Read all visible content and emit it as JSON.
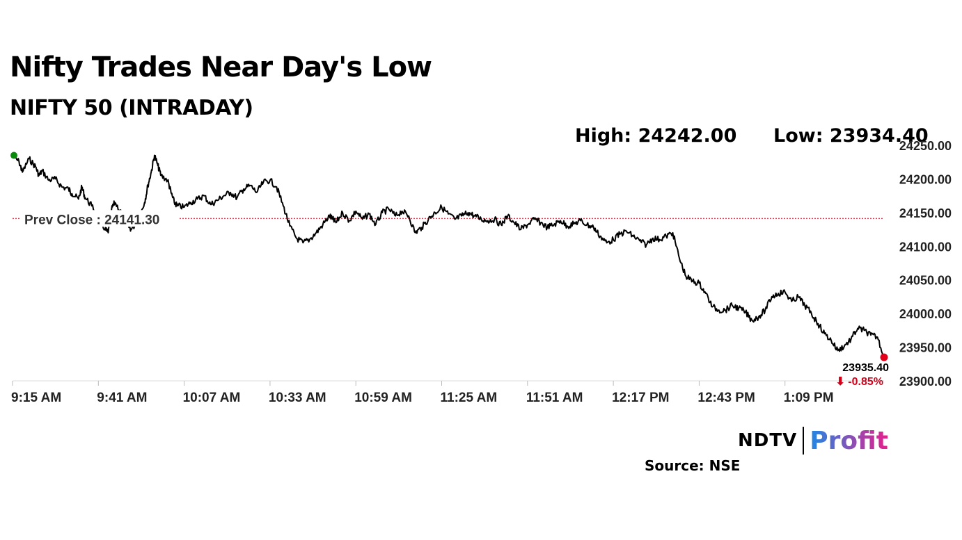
{
  "header": {
    "title": "Nifty Trades Near Day's Low",
    "subtitle": "NIFTY 50 (INTRADAY)",
    "high_text": "High: 24242.00",
    "low_text": "Low: 23934.40"
  },
  "footer": {
    "logo_left": "NDTV",
    "logo_right": "Profit",
    "source": "Source: NSE"
  },
  "colors": {
    "line": "#000000",
    "prev_close_line": "#d0021b",
    "start_dot": "#0a8a0a",
    "end_dot": "#e3001b",
    "profit_gradient_start": "#1e88e5",
    "profit_gradient_end": "#e91e8c"
  },
  "chart_data": {
    "type": "line",
    "ylim": [
      23900,
      24250
    ],
    "y_ticks": [
      "24250.00",
      "24200.00",
      "24150.00",
      "24100.00",
      "24050.00",
      "24000.00",
      "23950.00",
      "23900.00"
    ],
    "x_ticks": [
      "9:15 AM",
      "9:41 AM",
      "10:07 AM",
      "10:33 AM",
      "10:59 AM",
      "11:25 AM",
      "11:51 AM",
      "12:17 PM",
      "12:43 PM",
      "1:09 PM"
    ],
    "x_range_minutes": [
      0,
      264
    ],
    "prev_close": 24141.3,
    "prev_close_label": "Prev Close : 24141.30",
    "last_value_label": "23935.40",
    "change_label": "⬇ -0.85%",
    "series": [
      {
        "x": [
          0,
          2,
          3,
          5,
          7,
          8,
          9,
          11,
          13,
          15,
          17,
          18,
          20,
          21,
          22,
          24,
          26,
          28,
          29,
          30,
          31,
          33,
          35,
          36,
          38,
          40,
          41,
          42,
          43,
          44,
          45,
          47,
          48,
          49,
          50,
          52,
          54,
          56,
          58,
          60,
          62,
          64,
          66,
          68,
          70,
          72,
          74,
          76,
          78,
          80,
          82,
          84,
          86,
          88,
          90,
          92,
          94,
          96,
          97,
          98,
          100,
          102,
          104,
          106,
          108,
          110,
          112,
          114,
          116,
          118,
          120,
          122,
          124,
          126,
          128,
          130,
          132,
          134,
          136,
          138,
          140,
          142,
          144,
          146,
          148,
          150,
          152,
          154,
          156,
          158,
          160,
          162,
          164,
          166,
          168,
          170,
          172,
          174,
          176,
          178,
          180,
          182,
          184,
          186,
          188,
          190,
          192,
          194,
          196,
          198,
          200,
          202,
          204,
          206,
          208,
          210,
          212,
          214,
          216,
          218,
          220,
          222,
          224,
          226,
          228,
          230,
          232,
          234,
          236,
          238,
          240,
          242,
          244,
          246,
          248,
          250,
          252,
          254,
          256,
          258,
          260,
          262,
          264
        ],
        "values": [
          24235,
          24225,
          24210,
          24230,
          24218,
          24205,
          24212,
          24198,
          24200,
          24188,
          24185,
          24178,
          24170,
          24188,
          24172,
          24160,
          24145,
          24125,
          24120,
          24155,
          24165,
          24150,
          24130,
          24125,
          24138,
          24165,
          24190,
          24210,
          24235,
          24220,
          24205,
          24198,
          24180,
          24165,
          24160,
          24158,
          24165,
          24170,
          24175,
          24162,
          24168,
          24175,
          24180,
          24172,
          24185,
          24190,
          24180,
          24195,
          24198,
          24188,
          24160,
          24130,
          24112,
          24105,
          24110,
          24120,
          24132,
          24145,
          24140,
          24135,
          24150,
          24138,
          24152,
          24140,
          24148,
          24132,
          24150,
          24155,
          24145,
          24152,
          24145,
          24120,
          24128,
          24140,
          24150,
          24158,
          24148,
          24140,
          24145,
          24150,
          24145,
          24140,
          24138,
          24140,
          24132,
          24145,
          24135,
          24125,
          24132,
          24140,
          24135,
          24128,
          24132,
          24138,
          24130,
          24133,
          24138,
          24132,
          24128,
          24115,
          24105,
          24110,
          24118,
          24122,
          24115,
          24108,
          24102,
          24112,
          24110,
          24115,
          24120,
          24082,
          24055,
          24048,
          24045,
          24030,
          24010,
          24005,
          24005,
          24012,
          24008,
          24002,
          23990,
          23995,
          24005,
          24025,
          24030,
          24032,
          24018,
          24025,
          24012,
          24000,
          23985,
          23970,
          23960,
          23945,
          23952,
          23962,
          23978,
          23975,
          23968,
          23965,
          23935
        ]
      }
    ]
  }
}
